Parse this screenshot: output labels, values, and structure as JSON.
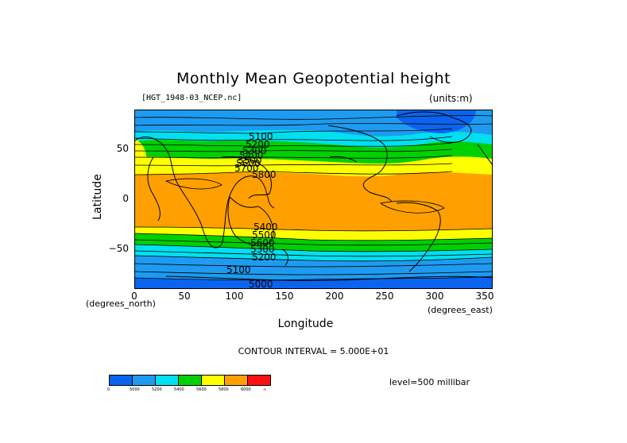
{
  "title": "Monthly Mean Geopotential height",
  "file_label": "[HGT_1948-03_NCEP.nc]",
  "units_label": "(units:m)",
  "y_axis_label": "Latitude",
  "x_axis_label": "Longitude",
  "y_unit_label": "(degrees_north)",
  "x_unit_label": "(degrees_east)",
  "contour_interval": "CONTOUR INTERVAL = 5.000E+01",
  "level_label": "level=500 millibar",
  "y_ticks": [
    "50",
    "0",
    "−50"
  ],
  "x_ticks": [
    "0",
    "50",
    "100",
    "150",
    "200",
    "250",
    "300",
    "350"
  ],
  "contour_labels": [
    "5100",
    "5200",
    "5300",
    "5400",
    "5500",
    "5600",
    "5700",
    "5800",
    "5400",
    "5500",
    "5600",
    "5300",
    "5200",
    "5100",
    "5000"
  ],
  "colorbar": {
    "colors": [
      "#0a64f0",
      "#1e9bf0",
      "#00e0f0",
      "#00d000",
      "#ffff00",
      "#ffa000",
      "#ff1010"
    ],
    "labels": [
      "0",
      "5000",
      "5200",
      "5400",
      "5600",
      "5800",
      "6000",
      "∞"
    ]
  },
  "map_bands": {
    "colors": {
      "dark_blue": "#0a64f0",
      "blue": "#1e9bf0",
      "cyan": "#00e0f0",
      "green": "#00d000",
      "yellow": "#ffff00",
      "orange": "#ffa000"
    }
  }
}
